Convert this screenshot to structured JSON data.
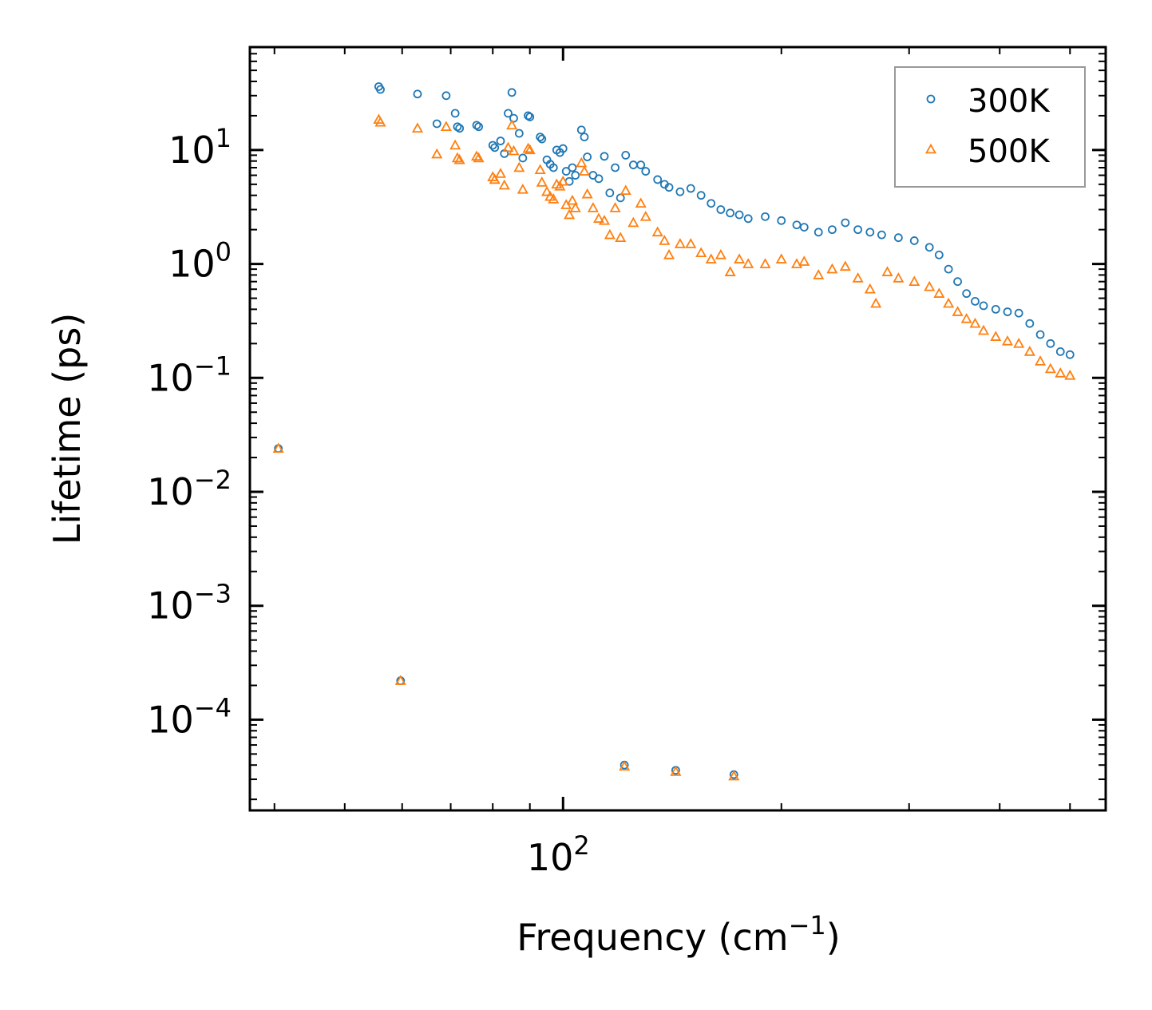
{
  "chart_data": {
    "type": "scatter",
    "xscale": "log",
    "yscale": "log",
    "xlabel": "Frequency (cm",
    "xlabel_sup": "−1",
    "xlabel_close": ")",
    "ylabel": "Lifetime (ps)",
    "xlim": [
      37,
      560
    ],
    "ylim": [
      1.6e-05,
      80
    ],
    "x_ticks": [
      {
        "value": 100,
        "base": "10",
        "exp": "2"
      }
    ],
    "y_ticks": [
      {
        "value": 10,
        "base": "10",
        "exp": "1"
      },
      {
        "value": 1,
        "base": "10",
        "exp": "0"
      },
      {
        "value": 0.1,
        "base": "10",
        "exp": "−1"
      },
      {
        "value": 0.01,
        "base": "10",
        "exp": "−2"
      },
      {
        "value": 0.001,
        "base": "10",
        "exp": "−3"
      },
      {
        "value": 0.0001,
        "base": "10",
        "exp": "−4"
      }
    ],
    "legend_position": "top-right",
    "series": [
      {
        "name": "300K",
        "marker": "circle",
        "color": "#1f77b4",
        "points": [
          [
            40.5,
            0.024
          ],
          [
            55.7,
            36
          ],
          [
            56,
            34
          ],
          [
            59.7,
            0.00022
          ],
          [
            63,
            31
          ],
          [
            67,
            17
          ],
          [
            69,
            30
          ],
          [
            71,
            21
          ],
          [
            71.5,
            16
          ],
          [
            72,
            15.5
          ],
          [
            76,
            16.5
          ],
          [
            76.5,
            16
          ],
          [
            80,
            11
          ],
          [
            80.5,
            10.5
          ],
          [
            82,
            12
          ],
          [
            83,
            9.3
          ],
          [
            84,
            21
          ],
          [
            85,
            32
          ],
          [
            85.5,
            19
          ],
          [
            87,
            14
          ],
          [
            88,
            8.5
          ],
          [
            89.5,
            20
          ],
          [
            90,
            19.5
          ],
          [
            93,
            13
          ],
          [
            93.5,
            12.5
          ],
          [
            95,
            8.2
          ],
          [
            96,
            7.5
          ],
          [
            97,
            7
          ],
          [
            98,
            10
          ],
          [
            99,
            9.5
          ],
          [
            100,
            10.3
          ],
          [
            101,
            6.5
          ],
          [
            102,
            5.3
          ],
          [
            103,
            7
          ],
          [
            104,
            6
          ],
          [
            106,
            15
          ],
          [
            107,
            13
          ],
          [
            108,
            8.7
          ],
          [
            110,
            6
          ],
          [
            112,
            5.6
          ],
          [
            114,
            8.8
          ],
          [
            116,
            4.2
          ],
          [
            118,
            7
          ],
          [
            120,
            3.8
          ],
          [
            121.5,
            4e-05
          ],
          [
            122,
            9
          ],
          [
            125,
            7.4
          ],
          [
            128,
            7.4
          ],
          [
            130,
            6.5
          ],
          [
            135,
            5.5
          ],
          [
            138,
            5
          ],
          [
            140,
            4.7
          ],
          [
            143,
            3.6e-05
          ],
          [
            145,
            4.3
          ],
          [
            150,
            4.6
          ],
          [
            155,
            4
          ],
          [
            160,
            3.4
          ],
          [
            165,
            3
          ],
          [
            170,
            2.8
          ],
          [
            172,
            3.3e-05
          ],
          [
            175,
            2.7
          ],
          [
            180,
            2.5
          ],
          [
            190,
            2.6
          ],
          [
            200,
            2.4
          ],
          [
            210,
            2.2
          ],
          [
            215,
            2.1
          ],
          [
            225,
            1.9
          ],
          [
            235,
            2.0
          ],
          [
            245,
            2.3
          ],
          [
            255,
            2.0
          ],
          [
            265,
            1.9
          ],
          [
            275,
            1.8
          ],
          [
            290,
            1.7
          ],
          [
            305,
            1.6
          ],
          [
            320,
            1.4
          ],
          [
            330,
            1.2
          ],
          [
            340,
            0.9
          ],
          [
            350,
            0.7
          ],
          [
            360,
            0.55
          ],
          [
            370,
            0.47
          ],
          [
            380,
            0.43
          ],
          [
            395,
            0.4
          ],
          [
            410,
            0.38
          ],
          [
            425,
            0.37
          ],
          [
            440,
            0.3
          ],
          [
            455,
            0.24
          ],
          [
            470,
            0.2
          ],
          [
            485,
            0.17
          ],
          [
            500,
            0.16
          ]
        ]
      },
      {
        "name": "500K",
        "marker": "triangle",
        "color": "#ff7f0e",
        "points": [
          [
            40.5,
            0.024
          ],
          [
            55.7,
            18.5
          ],
          [
            56,
            17.5
          ],
          [
            59.7,
            0.00022
          ],
          [
            63,
            15.5
          ],
          [
            67,
            9.2
          ],
          [
            69,
            16
          ],
          [
            71,
            11
          ],
          [
            71.5,
            8.5
          ],
          [
            72,
            8.2
          ],
          [
            76,
            8.8
          ],
          [
            76.5,
            8.5
          ],
          [
            80,
            5.8
          ],
          [
            80.5,
            5.5
          ],
          [
            82,
            6.2
          ],
          [
            83,
            4.9
          ],
          [
            84,
            10.5
          ],
          [
            85,
            16.5
          ],
          [
            85.5,
            9.8
          ],
          [
            87,
            7
          ],
          [
            88,
            4.5
          ],
          [
            89.5,
            10.3
          ],
          [
            90,
            10
          ],
          [
            93,
            6.7
          ],
          [
            93.5,
            5.2
          ],
          [
            95,
            4.3
          ],
          [
            96,
            3.9
          ],
          [
            97,
            3.7
          ],
          [
            98,
            5.0
          ],
          [
            99,
            4.8
          ],
          [
            100,
            5.3
          ],
          [
            101,
            3.3
          ],
          [
            102,
            2.7
          ],
          [
            103,
            3.6
          ],
          [
            104,
            3.1
          ],
          [
            106,
            7.7
          ],
          [
            107,
            6.5
          ],
          [
            108,
            4.1
          ],
          [
            110,
            3.1
          ],
          [
            112,
            2.5
          ],
          [
            114,
            2.4
          ],
          [
            116,
            1.8
          ],
          [
            118,
            3.1
          ],
          [
            120,
            1.7
          ],
          [
            121.5,
            3.9e-05
          ],
          [
            122,
            4.4
          ],
          [
            125,
            2.3
          ],
          [
            128,
            3.4
          ],
          [
            130,
            2.6
          ],
          [
            135,
            1.9
          ],
          [
            138,
            1.6
          ],
          [
            140,
            1.2
          ],
          [
            143,
            3.5e-05
          ],
          [
            145,
            1.5
          ],
          [
            150,
            1.5
          ],
          [
            155,
            1.25
          ],
          [
            160,
            1.1
          ],
          [
            165,
            1.2
          ],
          [
            170,
            0.85
          ],
          [
            172,
            3.2e-05
          ],
          [
            175,
            1.1
          ],
          [
            180,
            1.0
          ],
          [
            190,
            1.0
          ],
          [
            200,
            1.1
          ],
          [
            210,
            1.0
          ],
          [
            215,
            1.05
          ],
          [
            225,
            0.8
          ],
          [
            235,
            0.9
          ],
          [
            245,
            0.95
          ],
          [
            255,
            0.75
          ],
          [
            265,
            0.6
          ],
          [
            270,
            0.45
          ],
          [
            280,
            0.85
          ],
          [
            290,
            0.75
          ],
          [
            305,
            0.7
          ],
          [
            320,
            0.63
          ],
          [
            330,
            0.55
          ],
          [
            340,
            0.45
          ],
          [
            350,
            0.38
          ],
          [
            360,
            0.33
          ],
          [
            370,
            0.3
          ],
          [
            380,
            0.26
          ],
          [
            395,
            0.23
          ],
          [
            410,
            0.21
          ],
          [
            425,
            0.2
          ],
          [
            440,
            0.17
          ],
          [
            455,
            0.14
          ],
          [
            470,
            0.12
          ],
          [
            485,
            0.11
          ],
          [
            500,
            0.105
          ]
        ]
      }
    ]
  }
}
